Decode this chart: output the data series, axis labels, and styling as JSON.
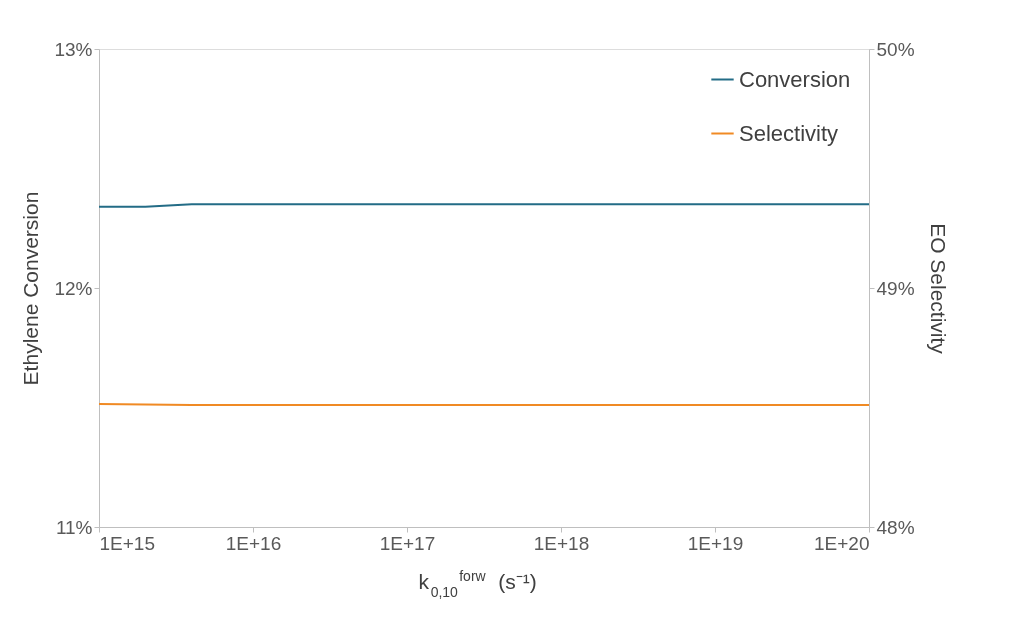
{
  "chart_data": {
    "type": "line",
    "xlabel": "k$_{0,10}$$^{forw}$ (s⁻¹)",
    "ylabel": "Ethylene Conversion",
    "y2label": "EO Selectivity",
    "x": [
      1000000000000000.0,
      2000000000000000.0,
      4000000000000000.0,
      1e+16,
      1e+17,
      1e+18,
      1e+19,
      1e+20
    ],
    "series": [
      {
        "name": "Conversion",
        "color": "#236c86",
        "values": [
          12.34,
          12.34,
          12.35,
          12.35,
          12.35,
          12.35,
          12.35,
          12.35
        ]
      },
      {
        "name": "Selectivity",
        "color": "#f08a24",
        "axis": "y2",
        "values": [
          48.515,
          48.513,
          48.51,
          48.51,
          48.51,
          48.51,
          48.51,
          48.51
        ]
      }
    ],
    "log": "x",
    "xlim": [
      1000000000000000.0,
      1e+20
    ],
    "xticks": [
      {
        "value": 1000000000000000.0,
        "label": "1E+15"
      },
      {
        "value": 1e+16,
        "label": "1E+16"
      },
      {
        "value": 1e+17,
        "label": "1E+17"
      },
      {
        "value": 1e+18,
        "label": "1E+18"
      },
      {
        "value": 1e+19,
        "label": "1E+19"
      },
      {
        "value": 1e+20,
        "label": "1E+20"
      }
    ],
    "ylim": [
      11,
      13
    ],
    "yticks": [
      {
        "value": 11,
        "label": "11%"
      },
      {
        "value": 12,
        "label": "12%"
      },
      {
        "value": 13,
        "label": "13%"
      }
    ],
    "y2lim": [
      48,
      50
    ],
    "y2ticks": [
      {
        "value": 48,
        "label": "48%"
      },
      {
        "value": 49,
        "label": "49%"
      },
      {
        "value": 50,
        "label": "50%"
      }
    ],
    "grid": false,
    "legend": "top right",
    "marker": "none",
    "line_style": "solid"
  }
}
